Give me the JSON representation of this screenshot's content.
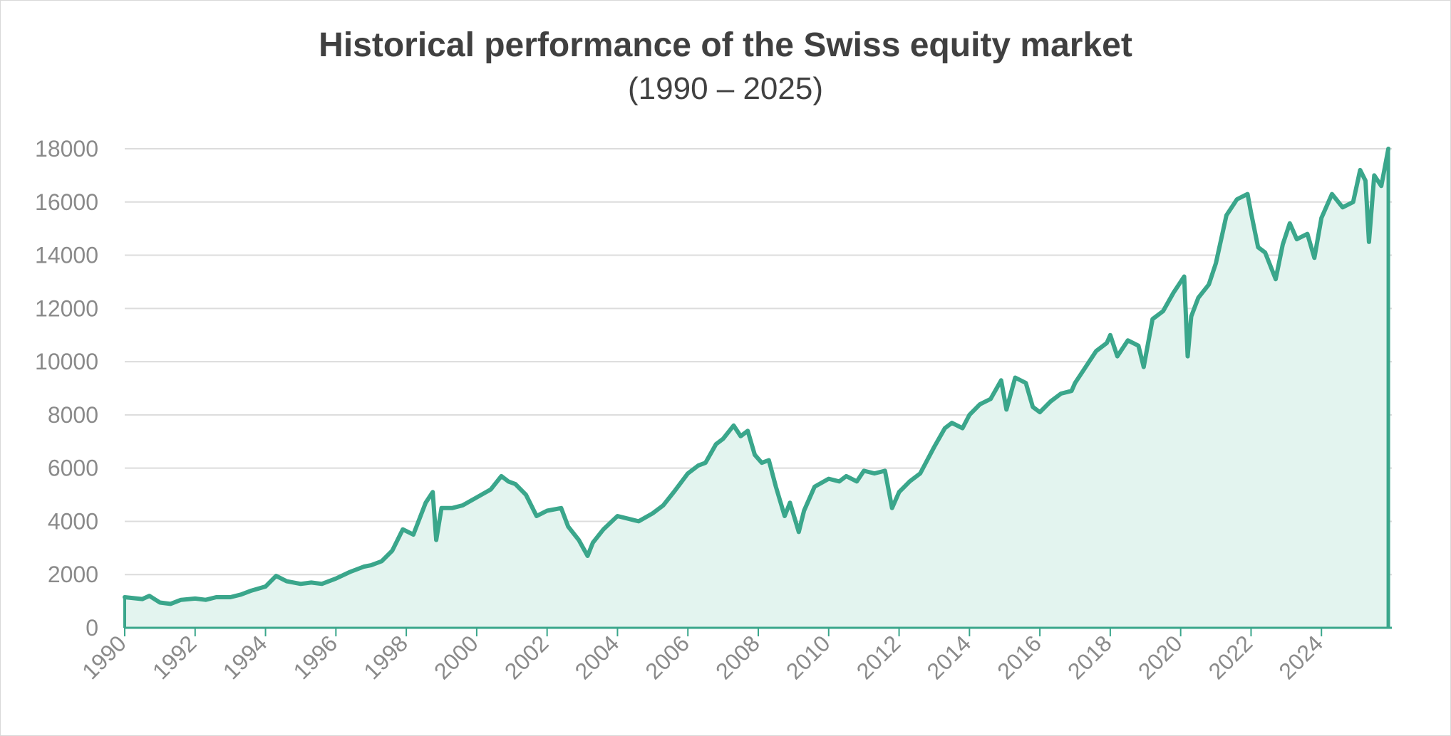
{
  "chart_data": {
    "type": "area",
    "title": "Historical performance of the Swiss equity market",
    "subtitle": "(1990 – 2025)",
    "xlabel": "",
    "ylabel": "",
    "xlim": [
      1990,
      2026
    ],
    "ylim": [
      0,
      18000
    ],
    "grid": true,
    "x_ticks": [
      "1990",
      "1992",
      "1994",
      "1996",
      "1998",
      "2000",
      "2002",
      "2004",
      "2006",
      "2008",
      "2010",
      "2012",
      "2014",
      "2016",
      "2018",
      "2020",
      "2022",
      "2024"
    ],
    "y_ticks": [
      "0",
      "2000",
      "4000",
      "6000",
      "8000",
      "10000",
      "12000",
      "14000",
      "16000",
      "18000"
    ],
    "colors": {
      "line": "#3aa68b",
      "fill": "#e3f4ef",
      "grid": "#dcdcdc",
      "axis": "#3aa68b"
    },
    "series": [
      {
        "x": [
          1990.0,
          1990.5,
          1990.7,
          1991.0,
          1991.3,
          1991.6,
          1992.0,
          1992.3,
          1992.6,
          1993.0,
          1993.3,
          1993.6,
          1994.0,
          1994.3,
          1994.6,
          1995.0,
          1995.3,
          1995.6,
          1996.0,
          1996.4,
          1996.8,
          1997.0,
          1997.3,
          1997.6,
          1997.9,
          1998.2,
          1998.55,
          1998.75,
          1998.85,
          1999.0,
          1999.3,
          1999.6,
          2000.0,
          2000.4,
          2000.7,
          2000.9,
          2001.1,
          2001.4,
          2001.7,
          2002.0,
          2002.4,
          2002.6,
          2002.9,
          2003.15,
          2003.3,
          2003.6,
          2004.0,
          2004.3,
          2004.6,
          2005.0,
          2005.3,
          2005.6,
          2006.0,
          2006.3,
          2006.5,
          2006.8,
          2007.0,
          2007.3,
          2007.5,
          2007.7,
          2007.9,
          2008.1,
          2008.3,
          2008.5,
          2008.75,
          2008.9,
          2009.15,
          2009.3,
          2009.6,
          2010.0,
          2010.3,
          2010.5,
          2010.8,
          2011.0,
          2011.3,
          2011.6,
          2011.8,
          2012.0,
          2012.3,
          2012.6,
          2013.0,
          2013.3,
          2013.5,
          2013.8,
          2014.0,
          2014.3,
          2014.6,
          2014.9,
          2015.05,
          2015.3,
          2015.6,
          2015.8,
          2016.0,
          2016.3,
          2016.6,
          2016.9,
          2017.0,
          2017.3,
          2017.6,
          2017.9,
          2018.0,
          2018.2,
          2018.5,
          2018.8,
          2018.95,
          2019.2,
          2019.5,
          2019.8,
          2020.1,
          2020.2,
          2020.3,
          2020.5,
          2020.8,
          2021.0,
          2021.3,
          2021.6,
          2021.9,
          2022.0,
          2022.2,
          2022.4,
          2022.7,
          2022.9,
          2023.1,
          2023.3,
          2023.6,
          2023.8,
          2024.0,
          2024.3,
          2024.6,
          2024.9,
          2025.1,
          2025.25,
          2025.35,
          2025.5,
          2025.7,
          2025.9
        ],
        "y": [
          1150,
          1080,
          1200,
          950,
          900,
          1050,
          1100,
          1050,
          1150,
          1150,
          1250,
          1400,
          1550,
          1950,
          1750,
          1650,
          1700,
          1650,
          1850,
          2100,
          2300,
          2350,
          2500,
          2900,
          3700,
          3500,
          4700,
          5100,
          3300,
          4500,
          4500,
          4600,
          4900,
          5200,
          5700,
          5500,
          5400,
          5000,
          4200,
          4400,
          4500,
          3800,
          3300,
          2700,
          3200,
          3700,
          4200,
          4100,
          4000,
          4300,
          4600,
          5100,
          5800,
          6100,
          6200,
          6900,
          7100,
          7600,
          7200,
          7400,
          6500,
          6200,
          6300,
          5300,
          4200,
          4700,
          3600,
          4400,
          5300,
          5600,
          5500,
          5700,
          5500,
          5900,
          5800,
          5900,
          4500,
          5100,
          5500,
          5800,
          6800,
          7500,
          7700,
          7500,
          8000,
          8400,
          8600,
          9300,
          8200,
          9400,
          9200,
          8300,
          8100,
          8500,
          8800,
          8900,
          9200,
          9800,
          10400,
          10700,
          11000,
          10200,
          10800,
          10600,
          9800,
          11600,
          11900,
          12600,
          13200,
          10200,
          11700,
          12400,
          12900,
          13700,
          15500,
          16100,
          16300,
          15600,
          14300,
          14100,
          13100,
          14400,
          15200,
          14600,
          14800,
          13900,
          15400,
          16300,
          15800,
          16000,
          17200,
          16800,
          14500,
          17000,
          16600,
          18000
        ]
      }
    ]
  }
}
